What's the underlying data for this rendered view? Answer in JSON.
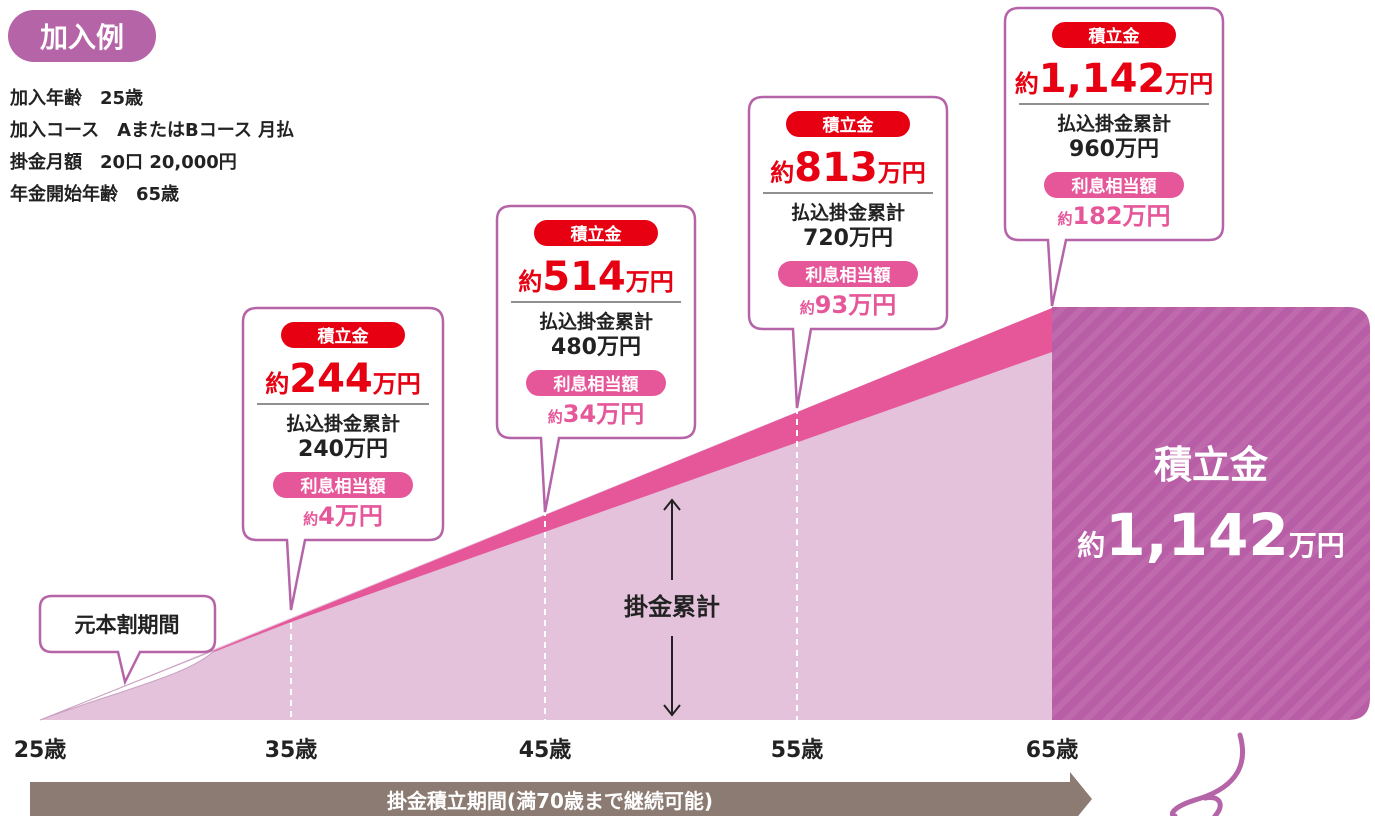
{
  "badge": "加入例",
  "info": [
    "加入年齢　25歳",
    "加入コース　AまたはBコース 月払",
    "掛金月額　20口 20,000円",
    "年金開始年齢　65歳"
  ],
  "callouts": [
    {
      "tag": "積立金",
      "prefix": "約",
      "amount": "244",
      "unit": "万円",
      "paid_label": "払込掛金累計",
      "paid": "240万円",
      "interest_tag": "利息相当額",
      "interest_prefix": "約",
      "interest": "4万円"
    },
    {
      "tag": "積立金",
      "prefix": "約",
      "amount": "514",
      "unit": "万円",
      "paid_label": "払込掛金累計",
      "paid": "480万円",
      "interest_tag": "利息相当額",
      "interest_prefix": "約",
      "interest": "34万円"
    },
    {
      "tag": "積立金",
      "prefix": "約",
      "amount": "813",
      "unit": "万円",
      "paid_label": "払込掛金累計",
      "paid": "720万円",
      "interest_tag": "利息相当額",
      "interest_prefix": "約",
      "interest": "93万円"
    },
    {
      "tag": "積立金",
      "prefix": "約",
      "amount": "1,142",
      "unit": "万円",
      "paid_label": "払込掛金累計",
      "paid": "960万円",
      "interest_tag": "利息相当額",
      "interest_prefix": "約",
      "interest": "182万円"
    }
  ],
  "loss_period": "元本割期間",
  "cumulative": "掛金累計",
  "total_box": {
    "title": "積立金",
    "prefix": "約",
    "amount": "1,142",
    "unit": "万円"
  },
  "ages": [
    "25歳",
    "35歳",
    "45歳",
    "55歳",
    "65歳"
  ],
  "period": "掛金積立期間(満70歳まで継続可能)"
}
